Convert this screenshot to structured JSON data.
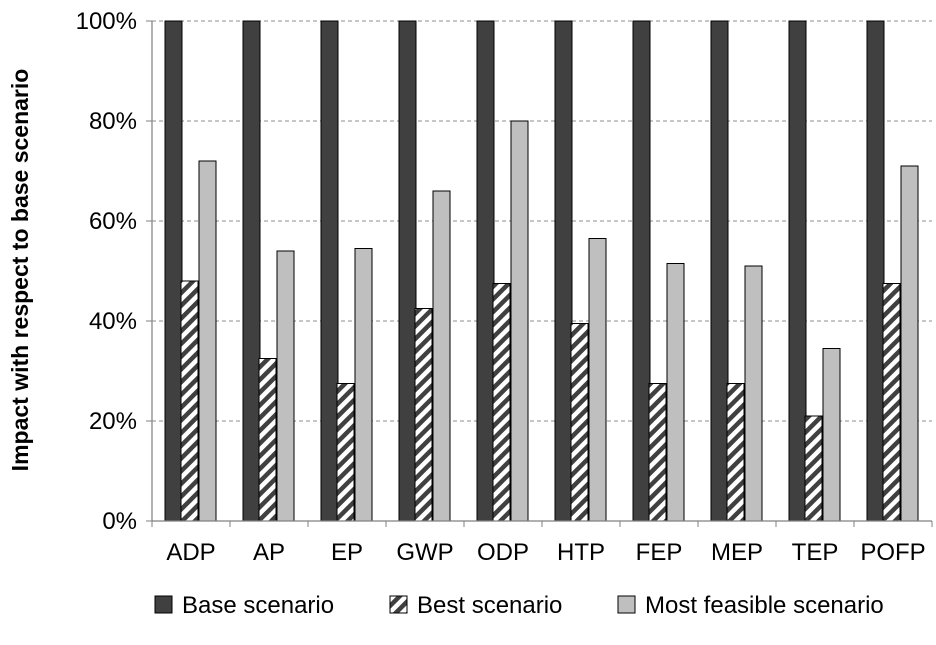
{
  "chart_data": {
    "type": "bar",
    "title": "",
    "xlabel": "",
    "ylabel": "Impact with respect to base scenario",
    "ylim": [
      0,
      100
    ],
    "yticks": [
      0,
      20,
      40,
      60,
      80,
      100
    ],
    "ytick_labels": [
      "0%",
      "20%",
      "40%",
      "60%",
      "80%",
      "100%"
    ],
    "grid": "horizontal-dashed",
    "legend_position": "bottom",
    "categories": [
      "ADP",
      "AP",
      "EP",
      "GWP",
      "ODP",
      "HTP",
      "FEP",
      "MEP",
      "TEP",
      "POFP"
    ],
    "series": [
      {
        "name": "Base scenario",
        "color": "#404040",
        "pattern": "solid",
        "values": [
          100,
          100,
          100,
          100,
          100,
          100,
          100,
          100,
          100,
          100
        ]
      },
      {
        "name": "Best scenario",
        "color": "#404040",
        "pattern": "diagonal-hatch",
        "values": [
          48,
          32.5,
          27.5,
          42.5,
          47.5,
          39.5,
          27.5,
          27.5,
          21,
          47.5
        ]
      },
      {
        "name": "Most feasible scenario",
        "color": "#bfbfbf",
        "pattern": "solid",
        "values": [
          72,
          54,
          54.5,
          66,
          80,
          56.5,
          51.5,
          51,
          34.5,
          71
        ]
      }
    ]
  }
}
